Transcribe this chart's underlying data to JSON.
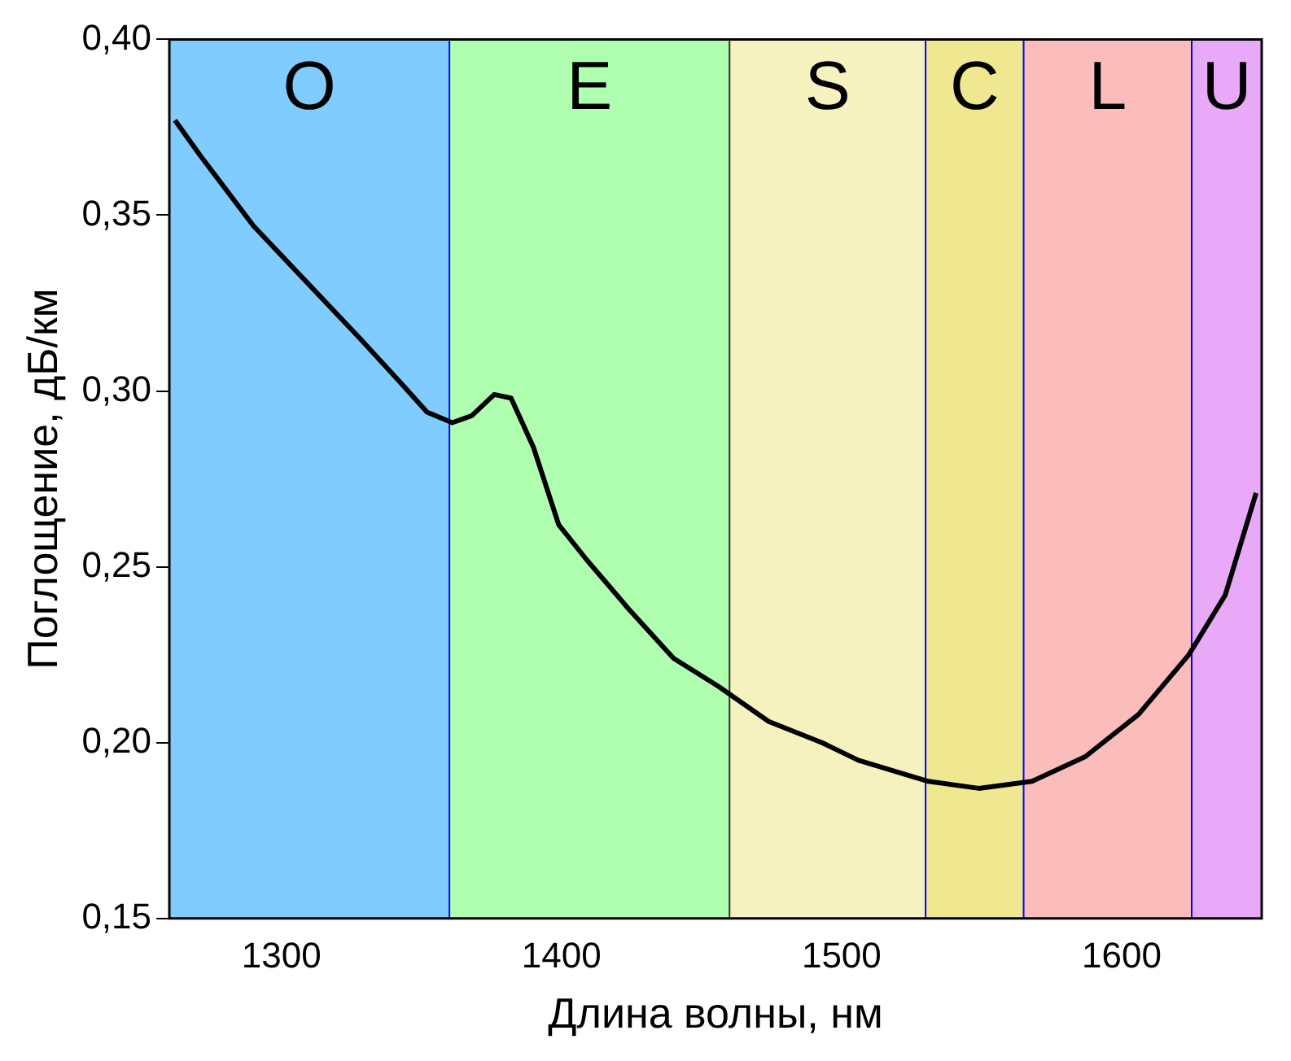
{
  "chart_data": {
    "type": "line",
    "xlabel": "Длина волны, нм",
    "ylabel": "Поглощение, дБ/км",
    "xlim": [
      1260,
      1650
    ],
    "xticks": [
      1300,
      1400,
      1500,
      1600
    ],
    "ylim": [
      0.15,
      0.4
    ],
    "yticks": [
      {
        "value": 0.15,
        "label": "0,15"
      },
      {
        "value": 0.2,
        "label": "0,20"
      },
      {
        "value": 0.25,
        "label": "0,25"
      },
      {
        "value": 0.3,
        "label": "0,30"
      },
      {
        "value": 0.35,
        "label": "0,35"
      },
      {
        "value": 0.4,
        "label": "0,40"
      }
    ],
    "grid": false,
    "legend": false,
    "marker": "none",
    "line_style": "solid",
    "bands": [
      {
        "axis": "x",
        "from": 1260,
        "to": 1360,
        "label": "O",
        "color": "#80ccff"
      },
      {
        "axis": "x",
        "from": 1360,
        "to": 1460,
        "label": "E",
        "color": "#b0ffb0"
      },
      {
        "axis": "x",
        "from": 1460,
        "to": 1530,
        "label": "S",
        "color": "#f5f2c0"
      },
      {
        "axis": "x",
        "from": 1530,
        "to": 1565,
        "label": "C",
        "color": "#f0e890"
      },
      {
        "axis": "x",
        "from": 1565,
        "to": 1625,
        "label": "L",
        "color": "#fbbcbc"
      },
      {
        "axis": "x",
        "from": 1625,
        "to": 1650,
        "label": "U",
        "color": "#e8aaf8"
      }
    ],
    "ref_lines": [
      {
        "axis": "x",
        "value": 1360,
        "color": "#0000ff"
      },
      {
        "axis": "x",
        "value": 1460,
        "color": "#303030"
      },
      {
        "axis": "x",
        "value": 1530,
        "color": "#0000ff"
      },
      {
        "axis": "x",
        "value": 1565,
        "color": "#0000ff"
      },
      {
        "axis": "x",
        "value": 1625,
        "color": "#0000ff"
      }
    ],
    "series": [
      {
        "color": "#000000",
        "x": [
          1262,
          1271,
          1290,
          1309,
          1328,
          1343,
          1352,
          1361,
          1368,
          1376,
          1382,
          1390,
          1399,
          1409,
          1424,
          1440,
          1456,
          1474,
          1493,
          1506,
          1531,
          1549,
          1568,
          1587,
          1606,
          1624,
          1637,
          1648
        ],
        "values": [
          0.377,
          0.367,
          0.347,
          0.331,
          0.315,
          0.302,
          0.294,
          0.291,
          0.293,
          0.299,
          0.298,
          0.284,
          0.262,
          0.252,
          0.238,
          0.224,
          0.216,
          0.206,
          0.2,
          0.195,
          0.189,
          0.187,
          0.189,
          0.196,
          0.208,
          0.225,
          0.242,
          0.271
        ]
      }
    ]
  }
}
